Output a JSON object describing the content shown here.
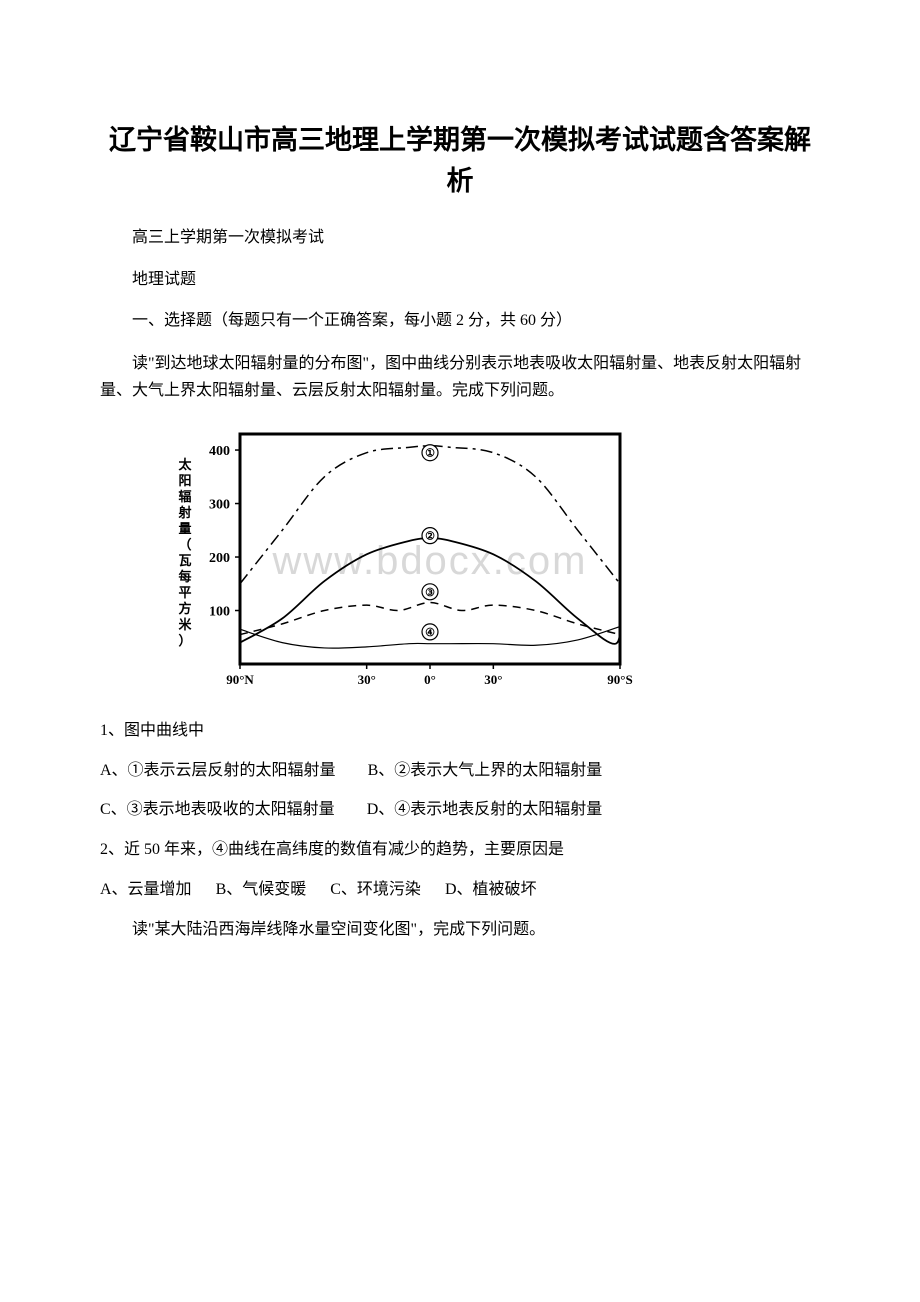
{
  "title": "辽宁省鞍山市高三地理上学期第一次模拟考试试题含答案解析",
  "subtitle": "高三上学期第一次模拟考试",
  "subject": "地理试题",
  "section_header": "一、选择题（每题只有一个正确答案，每小题 2 分，共 60 分）",
  "passage1": "读\"到达地球太阳辐射量的分布图\"，图中曲线分别表示地表吸收太阳辐射量、地表反射太阳辐射量、大气上界太阳辐射量、云层反射太阳辐射量。完成下列问题。",
  "chart1": {
    "type": "line",
    "y_axis_label": "太阳辐射量（瓦每平方米）",
    "y_ticks": [
      100,
      200,
      300,
      400
    ],
    "x_ticks": [
      "90°N",
      "30°",
      "0°",
      "30°",
      "90°S"
    ],
    "ylim": [
      0,
      430
    ],
    "xlim": [
      -90,
      90
    ],
    "plot_bg": "#ffffff",
    "axis_color": "#000000",
    "curves": [
      {
        "id": "①",
        "style": "dash-dot",
        "color": "#000000",
        "linewidth": 1.5,
        "label_x": 0,
        "label_y": 395,
        "points": [
          [
            -90,
            150
          ],
          [
            -70,
            250
          ],
          [
            -50,
            350
          ],
          [
            -30,
            395
          ],
          [
            -10,
            405
          ],
          [
            0,
            408
          ],
          [
            10,
            405
          ],
          [
            30,
            395
          ],
          [
            50,
            350
          ],
          [
            70,
            250
          ],
          [
            90,
            150
          ]
        ]
      },
      {
        "id": "②",
        "style": "solid",
        "color": "#000000",
        "linewidth": 1.8,
        "label_x": 0,
        "label_y": 240,
        "points": [
          [
            -90,
            40
          ],
          [
            -70,
            85
          ],
          [
            -50,
            155
          ],
          [
            -30,
            205
          ],
          [
            -10,
            230
          ],
          [
            0,
            235
          ],
          [
            10,
            230
          ],
          [
            30,
            205
          ],
          [
            50,
            155
          ],
          [
            70,
            85
          ],
          [
            88,
            38
          ],
          [
            90,
            110
          ]
        ]
      },
      {
        "id": "③",
        "style": "dashed",
        "color": "#000000",
        "linewidth": 1.5,
        "label_x": 0,
        "label_y": 135,
        "points": [
          [
            -90,
            55
          ],
          [
            -70,
            75
          ],
          [
            -50,
            100
          ],
          [
            -30,
            110
          ],
          [
            -15,
            100
          ],
          [
            0,
            115
          ],
          [
            15,
            100
          ],
          [
            30,
            110
          ],
          [
            50,
            100
          ],
          [
            70,
            75
          ],
          [
            90,
            55
          ]
        ]
      },
      {
        "id": "④",
        "style": "solid",
        "color": "#000000",
        "linewidth": 1.2,
        "label_x": 0,
        "label_y": 60,
        "points": [
          [
            -90,
            65
          ],
          [
            -70,
            40
          ],
          [
            -50,
            30
          ],
          [
            -30,
            32
          ],
          [
            -10,
            38
          ],
          [
            0,
            38
          ],
          [
            10,
            38
          ],
          [
            30,
            38
          ],
          [
            50,
            35
          ],
          [
            70,
            45
          ],
          [
            90,
            70
          ]
        ]
      }
    ],
    "watermark_text": "www.bdocx.com",
    "watermark_color": "#d8d8d8"
  },
  "q1": {
    "stem": "1、图中曲线中",
    "A": "A、①表示云层反射的太阳辐射量",
    "B": "B、②表示大气上界的太阳辐射量",
    "C": "C、③表示地表吸收的太阳辐射量",
    "D": "D、④表示地表反射的太阳辐射量"
  },
  "q2": {
    "stem": "2、近 50 年来，④曲线在高纬度的数值有减少的趋势，主要原因是",
    "A": "A、云量增加",
    "B": "B、气候变暖",
    "C": "C、环境污染",
    "D": "D、植被破坏"
  },
  "passage2": "读\"某大陆沿西海岸线降水量空间变化图\"，完成下列问题。"
}
